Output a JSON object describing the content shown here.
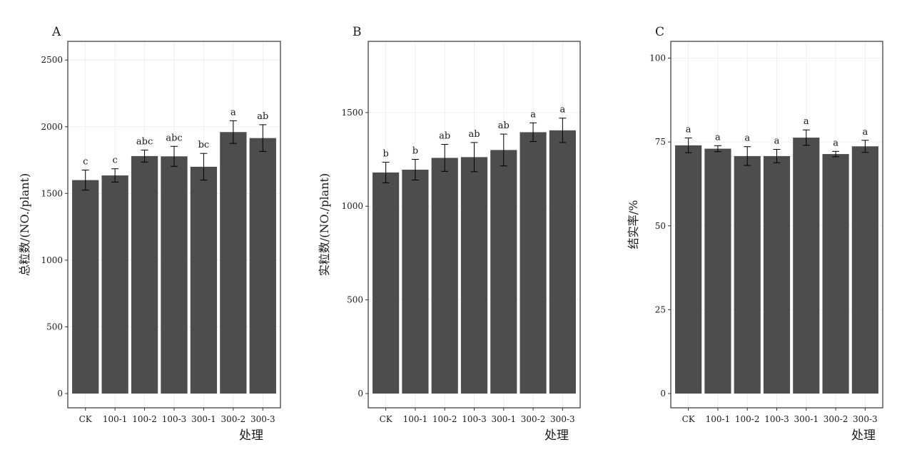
{
  "chart_data": [
    {
      "type": "bar",
      "panel_label": "A",
      "ylabel": "总粒数/(NO./plant)",
      "xlabel": "处理",
      "categories": [
        "CK",
        "100-1",
        "100-2",
        "100-3",
        "300-1",
        "300-2",
        "300-3"
      ],
      "values": [
        1600,
        1635,
        1780,
        1778,
        1700,
        1960,
        1915
      ],
      "errors": [
        75,
        50,
        45,
        75,
        100,
        85,
        100
      ],
      "significance": [
        "c",
        "c",
        "abc",
        "abc",
        "bc",
        "a",
        "ab"
      ],
      "ylim": [
        0,
        2640
      ],
      "yticks": [
        0,
        500,
        1000,
        1500,
        2000,
        2500
      ],
      "grid": true,
      "bar_color": "#4d4d4d"
    },
    {
      "type": "bar",
      "panel_label": "B",
      "ylabel": "实粒数/(NO./plant)",
      "xlabel": "处理",
      "categories": [
        "CK",
        "100-1",
        "100-2",
        "100-3",
        "300-1",
        "300-2",
        "300-3"
      ],
      "values": [
        1180,
        1195,
        1258,
        1262,
        1300,
        1395,
        1405
      ],
      "errors": [
        55,
        55,
        72,
        78,
        85,
        50,
        65
      ],
      "significance": [
        "b",
        "b",
        "ab",
        "ab",
        "ab",
        "a",
        "a"
      ],
      "ylim": [
        0,
        1880
      ],
      "yticks": [
        0,
        500,
        1000,
        1500
      ],
      "grid": true,
      "bar_color": "#4d4d4d"
    },
    {
      "type": "bar",
      "panel_label": "C",
      "ylabel": "结实率/%",
      "xlabel": "处理",
      "categories": [
        "CK",
        "100-1",
        "100-2",
        "100-3",
        "300-1",
        "300-2",
        "300-3"
      ],
      "values": [
        74,
        73,
        70.8,
        70.8,
        76.3,
        71.4,
        73.7
      ],
      "errors": [
        2.2,
        0.9,
        2.8,
        2.0,
        2.3,
        0.8,
        1.8
      ],
      "significance": [
        "a",
        "a",
        "a",
        "a",
        "a",
        "a",
        "a"
      ],
      "ylim": [
        0,
        105
      ],
      "yticks": [
        0,
        25,
        50,
        75,
        100
      ],
      "grid": true,
      "bar_color": "#4d4d4d"
    }
  ]
}
